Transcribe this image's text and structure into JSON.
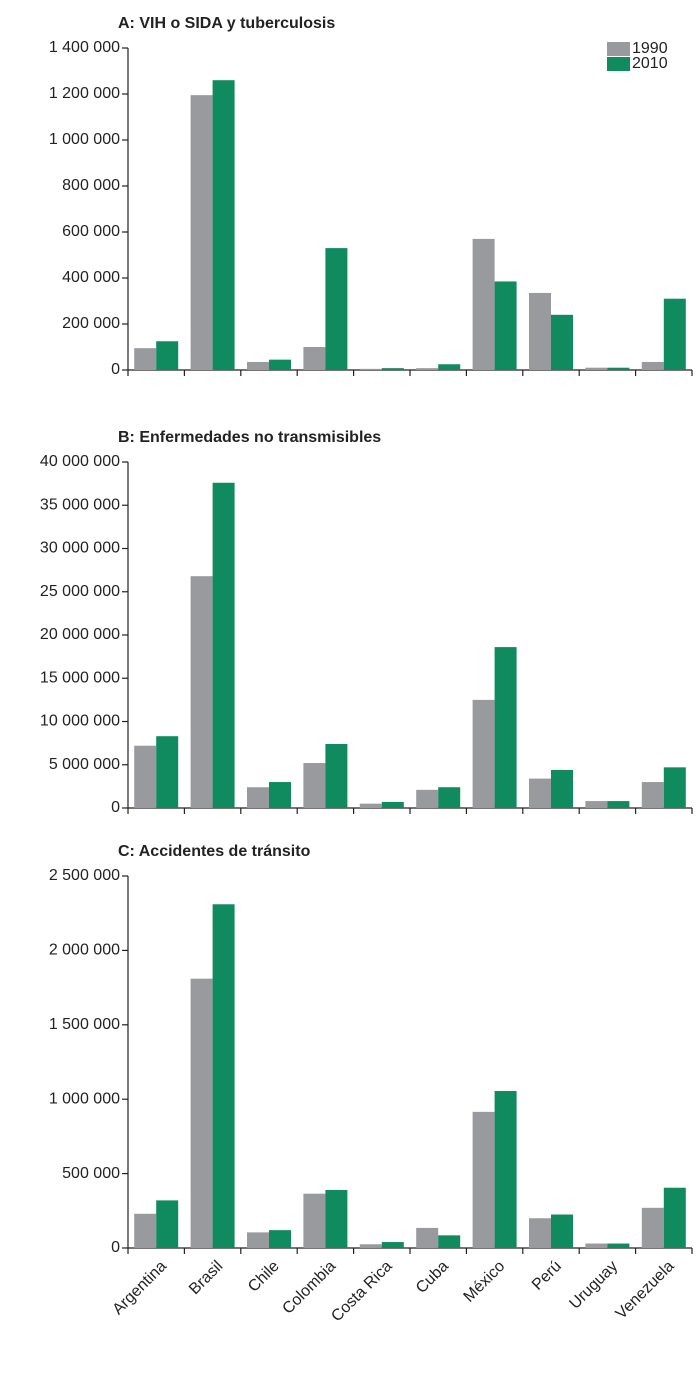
{
  "chart_data": [
    {
      "type": "bar",
      "title": "A: VIH o SIDA y tuberculosis",
      "legend": "upper right",
      "series": [
        {
          "name": "1990",
          "color": "#999a9e",
          "values": [
            95000,
            1195000,
            35000,
            100000,
            5000,
            8000,
            570000,
            335000,
            10000,
            35000
          ]
        },
        {
          "name": "2010",
          "color": "#108a5f",
          "values": [
            125000,
            1260000,
            45000,
            530000,
            8000,
            25000,
            385000,
            240000,
            10000,
            310000
          ]
        }
      ],
      "ylim": [
        0,
        1400000
      ],
      "yticks": [
        0,
        {
          "value": 200000,
          "label": "200 000"
        },
        {
          "value": 400000,
          "label": "400 000"
        },
        {
          "value": 600000,
          "label": "600 000"
        },
        {
          "value": 800000,
          "label": "800 000"
        },
        {
          "value": 1000000,
          "label": "1 000 000"
        },
        {
          "value": 1200000,
          "label": "1 200 000"
        },
        {
          "value": 1400000,
          "label": "1 400 000"
        }
      ]
    },
    {
      "type": "bar",
      "title": "B: Enfermedades no transmisibles",
      "series": [
        {
          "color": "#999a9e",
          "values": [
            7200000,
            26800000,
            2400000,
            5200000,
            500000,
            2100000,
            12500000,
            3400000,
            800000,
            3000000
          ]
        },
        {
          "color": "#108a5f",
          "values": [
            8300000,
            37600000,
            3000000,
            7400000,
            700000,
            2400000,
            18600000,
            4400000,
            800000,
            4700000
          ]
        }
      ],
      "ylim": [
        0,
        40000000
      ],
      "yticks": [
        0,
        {
          "value": 5000000,
          "label": "5 000 000"
        },
        {
          "value": 10000000,
          "label": "10 000 000"
        },
        {
          "value": 15000000,
          "label": "15 000 000"
        },
        {
          "value": 20000000,
          "label": "20 000 000"
        },
        {
          "value": 25000000,
          "label": "25 000 000"
        },
        {
          "value": 30000000,
          "label": "30 000 000"
        },
        {
          "value": 35000000,
          "label": "35 000 000"
        },
        {
          "value": 40000000,
          "label": "40 000 000"
        }
      ]
    },
    {
      "type": "bar",
      "title": "C: Accidentes de tránsito",
      "categories": [
        "Argentina",
        "Brasil",
        "Chile",
        "Colombia",
        "Costa Rica",
        "Cuba",
        "México",
        "Perú",
        "Uruguay",
        "Venezuela"
      ],
      "series": [
        {
          "color": "#999a9e",
          "values": [
            230000,
            1810000,
            105000,
            365000,
            25000,
            135000,
            915000,
            200000,
            30000,
            270000
          ]
        },
        {
          "color": "#108a5f",
          "values": [
            320000,
            2310000,
            120000,
            390000,
            40000,
            85000,
            1055000,
            225000,
            30000,
            405000
          ]
        }
      ],
      "ylim": [
        0,
        2500000
      ],
      "yticks": [
        0,
        {
          "value": 500000,
          "label": "500 000"
        },
        {
          "value": 1000000,
          "label": "1 000 000"
        },
        {
          "value": 1500000,
          "label": "1 500 000"
        },
        {
          "value": 2000000,
          "label": "2 000 000"
        },
        {
          "value": 2500000,
          "label": "2 500 000"
        }
      ]
    }
  ]
}
